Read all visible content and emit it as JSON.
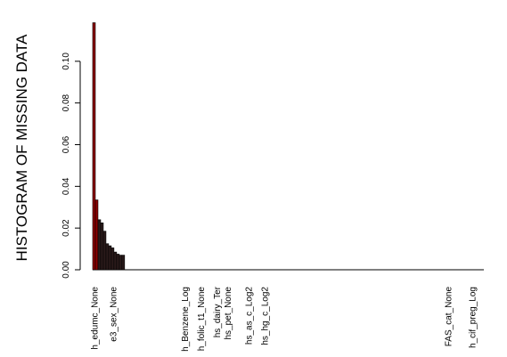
{
  "chart_data": {
    "type": "bar",
    "ylabel": "HISTOGRAM OF MISSING DATA",
    "ylim": [
      0,
      0.12
    ],
    "yticks": [
      0.0,
      0.02,
      0.04,
      0.06,
      0.08,
      0.1
    ],
    "ytick_labels": [
      "0.00",
      "0.02",
      "0.04",
      "0.06",
      "0.08",
      "0.10"
    ],
    "bar_count": 147,
    "values": [
      0.1185,
      0.0335,
      0.024,
      0.0225,
      0.0185,
      0.0125,
      0.0115,
      0.0105,
      0.0085,
      0.0075,
      0.007,
      0.007
    ],
    "bar_colors": [
      "#8b0000",
      "#8b0000",
      "#2a1a1a",
      "#2a1a1a",
      "#2a1a1a",
      "#2a1a1a",
      "#2a1a1a",
      "#2a1a1a",
      "#2a1a1a",
      "#2a1a1a",
      "#2a1a1a",
      "#2a1a1a"
    ],
    "xtick_labels": [
      {
        "index": 1,
        "label": "h_edumc_None"
      },
      {
        "index": 8,
        "label": "e3_sex_None"
      },
      {
        "index": 35,
        "label": "h_Benzene_Log"
      },
      {
        "index": 41,
        "label": "h_folic_t1_None"
      },
      {
        "index": 47,
        "label": "hs_dairy_Ter"
      },
      {
        "index": 51,
        "label": "hs_pet_None"
      },
      {
        "index": 59,
        "label": "hs_as_c_Log2"
      },
      {
        "index": 65,
        "label": "hs_hg_c_Log2"
      },
      {
        "index": 134,
        "label": "FAS_cat_None"
      },
      {
        "index": 143,
        "label": "h_cif_preg_Log"
      }
    ]
  }
}
